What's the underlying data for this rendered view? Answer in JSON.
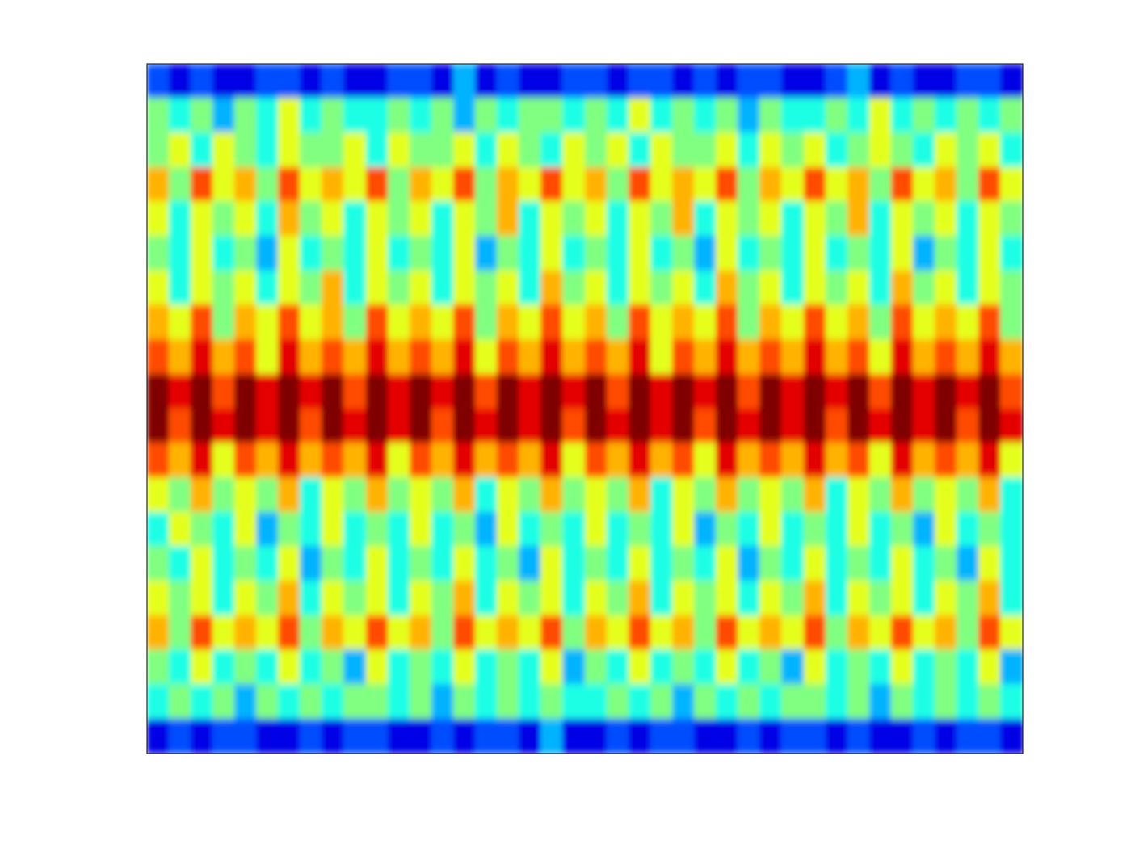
{
  "chart_data": {
    "type": "heatmap",
    "color": "jet",
    "tick_labels": false,
    "xlim": [
      0,
      40
    ],
    "ylim": [
      0,
      20
    ],
    "color_range": [
      0,
      10
    ],
    "cells": [
      [
        2,
        1,
        2,
        1,
        1,
        2,
        2,
        1,
        2,
        1,
        1,
        2,
        2,
        1,
        3,
        1,
        2,
        1,
        1,
        2,
        2,
        1,
        2,
        2,
        1,
        2,
        1,
        2,
        2,
        1,
        1,
        2,
        3,
        1,
        2,
        1,
        1,
        2,
        2,
        1
      ],
      [
        5,
        4,
        5,
        3,
        5,
        4,
        6,
        4,
        5,
        4,
        4,
        5,
        4,
        5,
        3,
        5,
        4,
        5,
        5,
        4,
        5,
        4,
        6,
        4,
        5,
        4,
        5,
        3,
        5,
        4,
        4,
        5,
        4,
        6,
        4,
        5,
        4,
        5,
        4,
        5
      ],
      [
        5,
        6,
        4,
        6,
        5,
        4,
        6,
        5,
        5,
        6,
        4,
        6,
        5,
        5,
        6,
        4,
        6,
        5,
        4,
        6,
        5,
        6,
        4,
        6,
        5,
        5,
        6,
        4,
        6,
        5,
        6,
        4,
        5,
        6,
        5,
        4,
        6,
        5,
        6,
        4
      ],
      [
        7,
        5,
        8,
        6,
        7,
        5,
        8,
        6,
        7,
        6,
        8,
        5,
        7,
        6,
        8,
        5,
        7,
        6,
        8,
        6,
        7,
        5,
        8,
        6,
        7,
        6,
        8,
        5,
        7,
        6,
        8,
        6,
        7,
        5,
        8,
        6,
        7,
        5,
        8,
        6
      ],
      [
        6,
        4,
        6,
        5,
        6,
        4,
        7,
        5,
        6,
        4,
        6,
        5,
        6,
        4,
        6,
        5,
        7,
        4,
        6,
        5,
        6,
        4,
        6,
        5,
        7,
        4,
        6,
        5,
        6,
        4,
        6,
        5,
        7,
        4,
        6,
        5,
        6,
        4,
        6,
        5
      ],
      [
        5,
        4,
        6,
        4,
        5,
        3,
        6,
        4,
        5,
        4,
        6,
        4,
        5,
        4,
        6,
        3,
        5,
        4,
        6,
        4,
        5,
        4,
        6,
        4,
        5,
        3,
        6,
        4,
        5,
        4,
        6,
        4,
        5,
        4,
        6,
        3,
        5,
        4,
        6,
        4
      ],
      [
        6,
        4,
        6,
        5,
        6,
        4,
        6,
        5,
        7,
        4,
        6,
        5,
        6,
        4,
        6,
        5,
        6,
        4,
        7,
        5,
        6,
        4,
        6,
        5,
        6,
        4,
        7,
        5,
        6,
        4,
        6,
        5,
        6,
        4,
        7,
        5,
        6,
        4,
        6,
        5
      ],
      [
        7,
        6,
        8,
        5,
        7,
        6,
        8,
        6,
        7,
        5,
        8,
        6,
        7,
        6,
        8,
        5,
        7,
        6,
        8,
        6,
        7,
        5,
        8,
        6,
        7,
        6,
        8,
        5,
        7,
        6,
        8,
        6,
        7,
        5,
        8,
        6,
        7,
        6,
        8,
        5
      ],
      [
        8,
        7,
        9,
        7,
        8,
        6,
        9,
        7,
        8,
        7,
        9,
        7,
        8,
        7,
        9,
        6,
        8,
        7,
        9,
        7,
        8,
        7,
        9,
        6,
        8,
        7,
        9,
        7,
        8,
        7,
        9,
        7,
        8,
        6,
        9,
        7,
        8,
        7,
        9,
        7
      ],
      [
        10,
        9,
        10,
        8,
        10,
        9,
        10,
        9,
        10,
        8,
        10,
        9,
        10,
        9,
        10,
        8,
        10,
        9,
        10,
        9,
        10,
        8,
        10,
        9,
        10,
        9,
        10,
        8,
        10,
        9,
        10,
        9,
        10,
        8,
        10,
        9,
        10,
        9,
        10,
        8
      ],
      [
        10,
        8,
        10,
        9,
        10,
        9,
        10,
        8,
        10,
        9,
        10,
        9,
        10,
        8,
        10,
        9,
        10,
        9,
        10,
        8,
        10,
        9,
        10,
        9,
        10,
        8,
        10,
        9,
        10,
        9,
        10,
        8,
        10,
        9,
        10,
        9,
        10,
        8,
        10,
        9
      ],
      [
        8,
        7,
        9,
        6,
        8,
        7,
        9,
        7,
        8,
        7,
        9,
        6,
        8,
        7,
        9,
        7,
        8,
        7,
        9,
        6,
        8,
        7,
        9,
        7,
        8,
        6,
        9,
        7,
        8,
        7,
        9,
        7,
        8,
        6,
        9,
        7,
        8,
        7,
        9,
        6
      ],
      [
        6,
        5,
        7,
        5,
        6,
        5,
        7,
        4,
        6,
        5,
        7,
        5,
        6,
        5,
        7,
        4,
        6,
        5,
        7,
        5,
        6,
        5,
        7,
        4,
        6,
        5,
        7,
        5,
        6,
        5,
        7,
        4,
        6,
        5,
        7,
        5,
        6,
        5,
        7,
        4
      ],
      [
        4,
        6,
        5,
        4,
        6,
        3,
        5,
        4,
        6,
        4,
        5,
        4,
        6,
        4,
        5,
        3,
        6,
        4,
        5,
        4,
        6,
        4,
        5,
        4,
        6,
        3,
        5,
        4,
        6,
        4,
        5,
        4,
        6,
        4,
        5,
        3,
        6,
        4,
        5,
        4
      ],
      [
        5,
        4,
        6,
        4,
        5,
        4,
        6,
        3,
        5,
        4,
        6,
        4,
        5,
        4,
        6,
        4,
        5,
        3,
        6,
        4,
        5,
        4,
        6,
        4,
        5,
        4,
        6,
        3,
        5,
        4,
        6,
        4,
        5,
        4,
        6,
        4,
        5,
        3,
        6,
        4
      ],
      [
        6,
        5,
        6,
        4,
        6,
        5,
        7,
        4,
        6,
        5,
        6,
        4,
        6,
        5,
        7,
        4,
        6,
        5,
        6,
        4,
        6,
        5,
        7,
        4,
        6,
        5,
        6,
        4,
        6,
        5,
        7,
        4,
        6,
        5,
        6,
        4,
        6,
        5,
        7,
        4
      ],
      [
        7,
        5,
        8,
        6,
        7,
        6,
        8,
        5,
        7,
        6,
        8,
        6,
        7,
        5,
        8,
        6,
        7,
        6,
        8,
        5,
        7,
        6,
        8,
        6,
        7,
        5,
        8,
        6,
        7,
        6,
        8,
        5,
        7,
        6,
        8,
        6,
        7,
        5,
        8,
        6
      ],
      [
        5,
        4,
        6,
        4,
        5,
        4,
        6,
        4,
        5,
        3,
        6,
        4,
        5,
        4,
        6,
        4,
        5,
        4,
        6,
        3,
        5,
        4,
        6,
        4,
        5,
        4,
        6,
        4,
        5,
        3,
        6,
        4,
        5,
        4,
        6,
        4,
        5,
        4,
        6,
        3
      ],
      [
        4,
        5,
        4,
        5,
        3,
        5,
        4,
        5,
        4,
        5,
        5,
        4,
        5,
        3,
        5,
        4,
        5,
        4,
        5,
        4,
        4,
        5,
        4,
        5,
        3,
        5,
        4,
        5,
        4,
        5,
        5,
        4,
        5,
        3,
        5,
        4,
        5,
        4,
        5,
        4
      ],
      [
        1,
        2,
        1,
        2,
        2,
        1,
        1,
        2,
        1,
        2,
        2,
        1,
        1,
        2,
        1,
        2,
        2,
        1,
        3,
        1,
        1,
        2,
        1,
        2,
        2,
        1,
        1,
        2,
        1,
        2,
        2,
        1,
        2,
        1,
        1,
        2,
        1,
        2,
        2,
        1
      ]
    ]
  }
}
